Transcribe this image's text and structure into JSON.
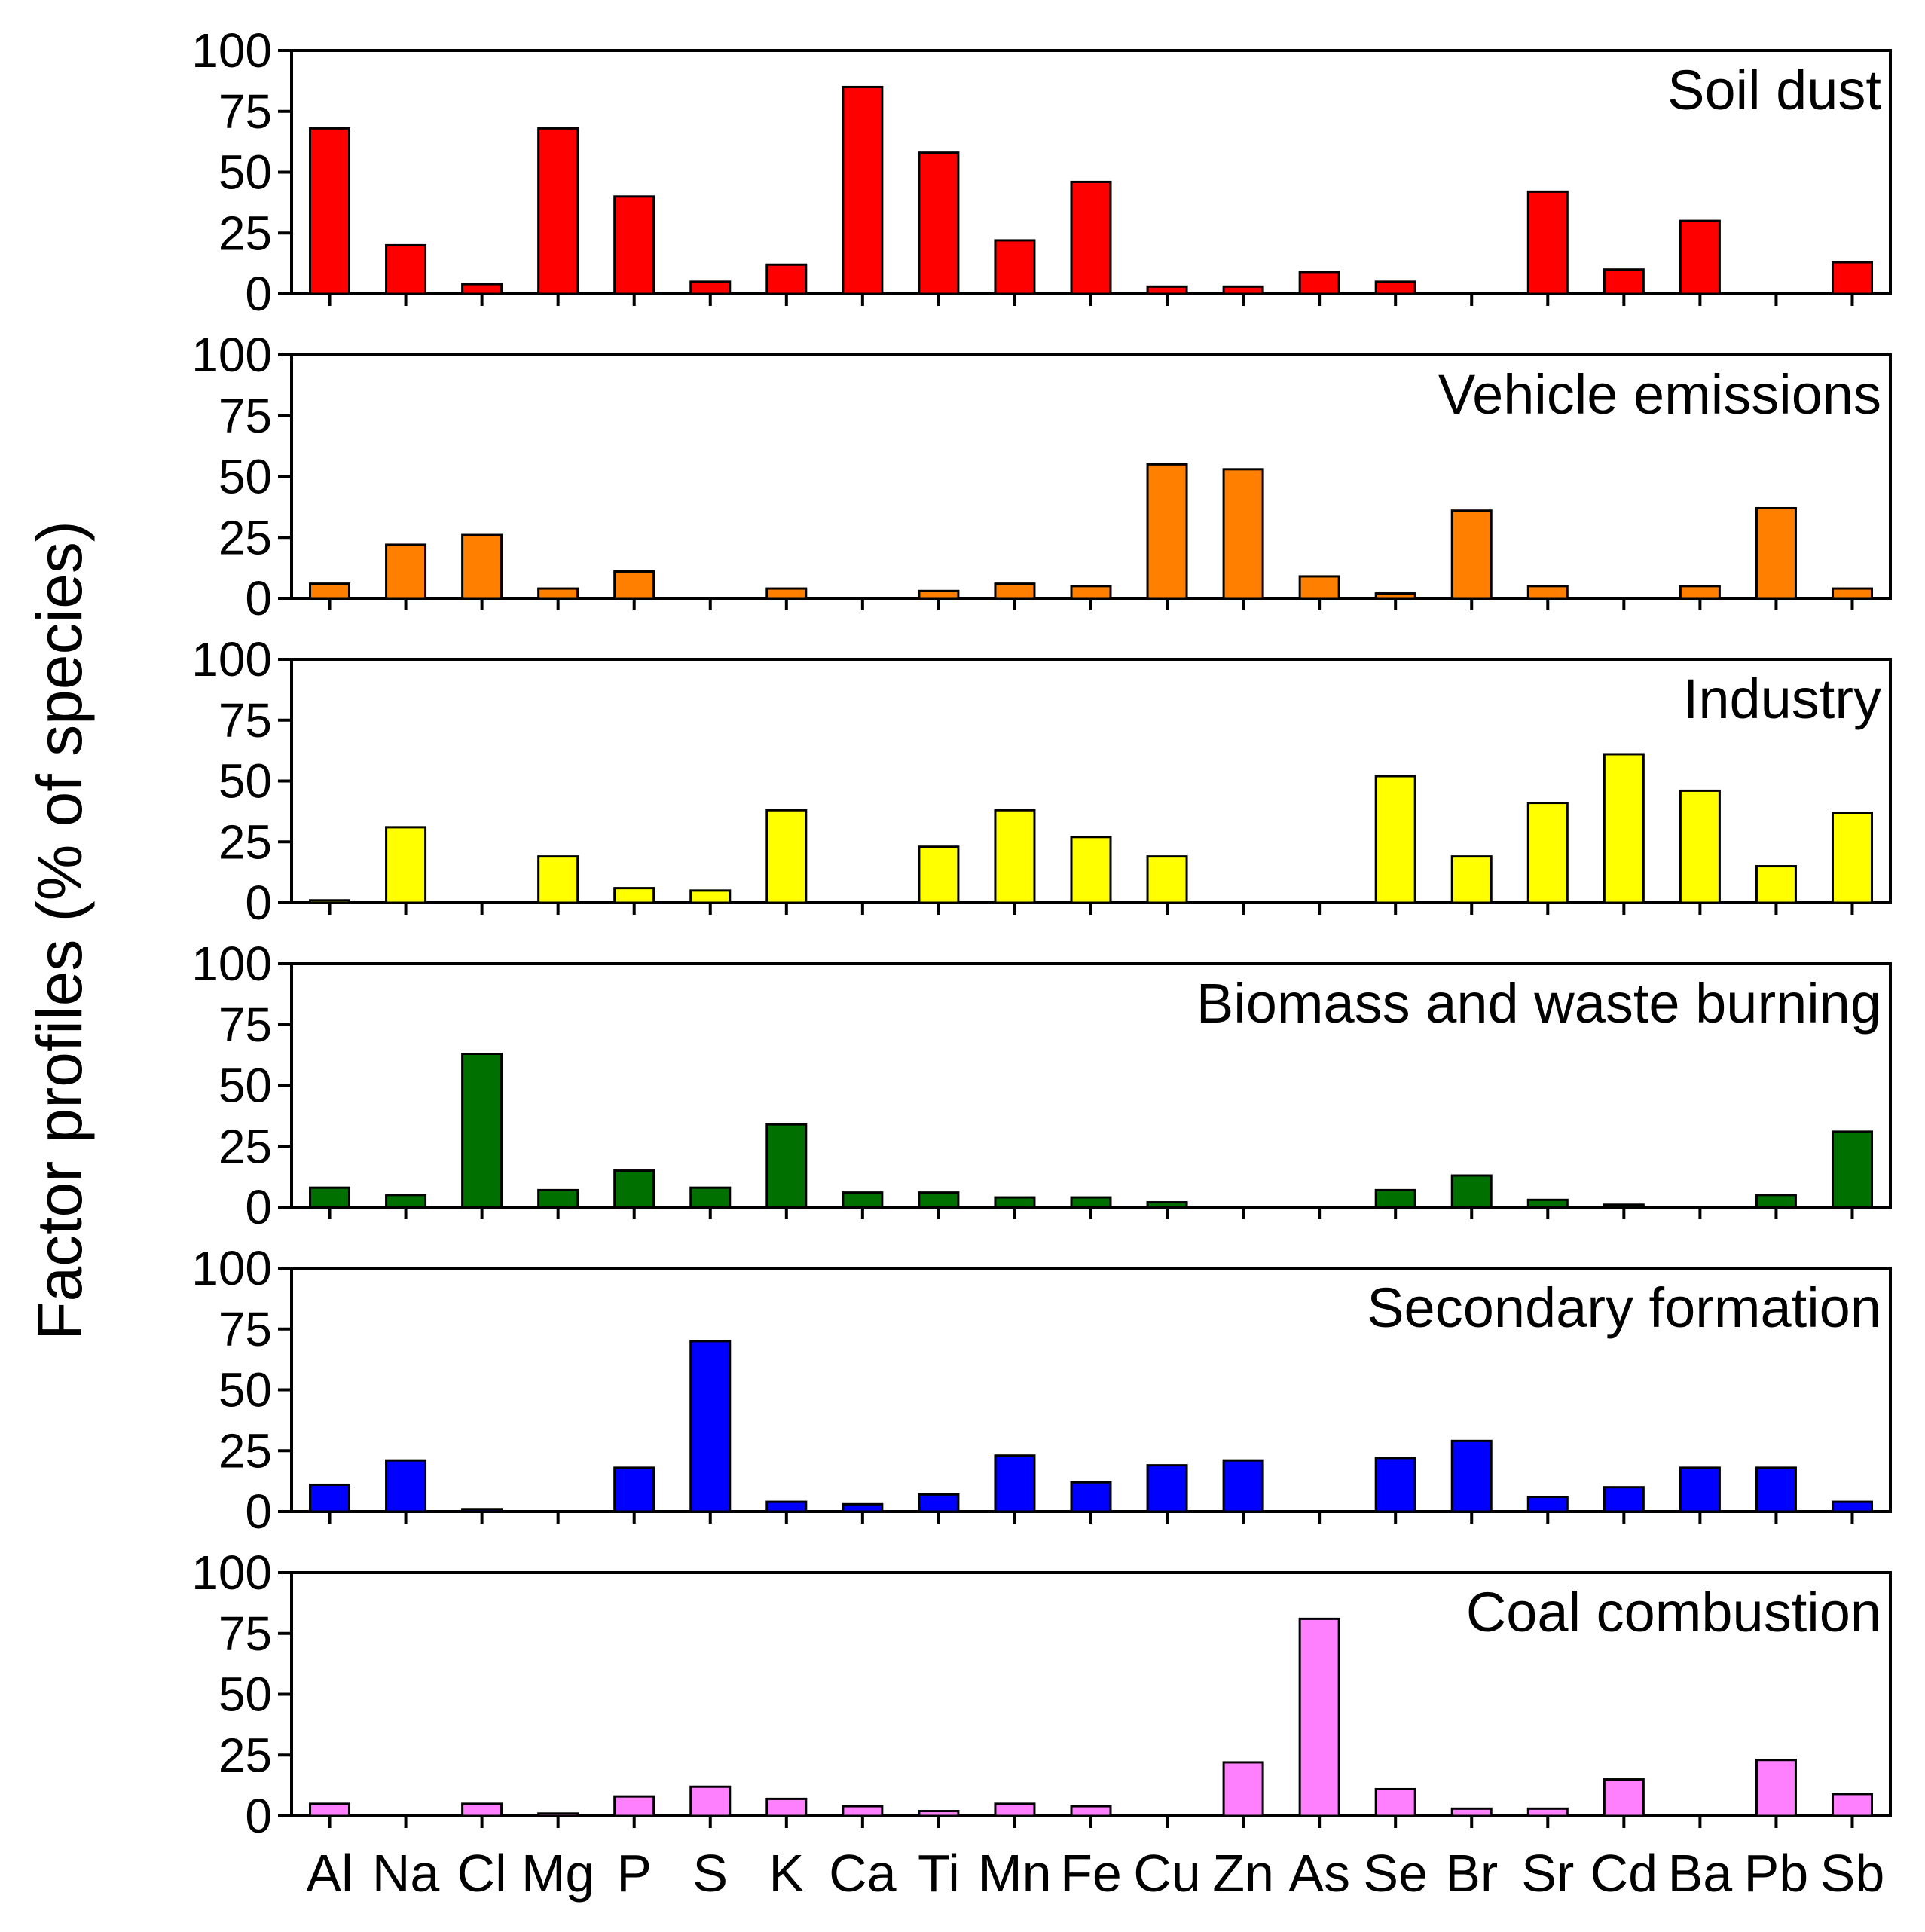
{
  "chart_data": {
    "type": "bar",
    "ylabel": "Factor profiles (% of species)",
    "ylim": [
      0,
      100
    ],
    "yticks": [
      "0",
      "25",
      "50",
      "75",
      "100"
    ],
    "categories": [
      "Al",
      "Na",
      "Cl",
      "Mg",
      "P",
      "S",
      "K",
      "Ca",
      "Ti",
      "Mn",
      "Fe",
      "Cu",
      "Zn",
      "As",
      "Se",
      "Br",
      "Sr",
      "Cd",
      "Ba",
      "Pb",
      "Sb"
    ],
    "series": [
      {
        "name": "Soil dust",
        "color": "#ff0000",
        "values": [
          68,
          20,
          4,
          68,
          40,
          5,
          12,
          85,
          58,
          22,
          46,
          3,
          3,
          9,
          5,
          0,
          42,
          10,
          30,
          0,
          13
        ]
      },
      {
        "name": "Vehicle emissions",
        "color": "#ff8000",
        "values": [
          6,
          22,
          26,
          4,
          11,
          0,
          4,
          0,
          3,
          6,
          5,
          55,
          53,
          9,
          2,
          36,
          5,
          0,
          5,
          37,
          4
        ]
      },
      {
        "name": "Industry",
        "color": "#ffff00",
        "values": [
          1,
          31,
          0,
          19,
          6,
          5,
          38,
          0,
          23,
          38,
          27,
          19,
          0,
          0,
          52,
          19,
          41,
          61,
          46,
          15,
          37
        ]
      },
      {
        "name": "Biomass and waste burning",
        "color": "#007000",
        "values": [
          8,
          5,
          63,
          7,
          15,
          8,
          34,
          6,
          6,
          4,
          4,
          2,
          0,
          0,
          7,
          13,
          3,
          1,
          0,
          5,
          31
        ]
      },
      {
        "name": "Secondary formation",
        "color": "#0000ff",
        "values": [
          11,
          21,
          1,
          0,
          18,
          70,
          4,
          3,
          7,
          23,
          12,
          19,
          21,
          0,
          22,
          29,
          6,
          10,
          18,
          18,
          4
        ]
      },
      {
        "name": "Coal combustion",
        "color": "#ff80ff",
        "values": [
          5,
          0,
          5,
          1,
          8,
          12,
          7,
          4,
          2,
          5,
          4,
          0,
          22,
          81,
          11,
          3,
          3,
          15,
          0,
          23,
          9
        ]
      }
    ]
  }
}
